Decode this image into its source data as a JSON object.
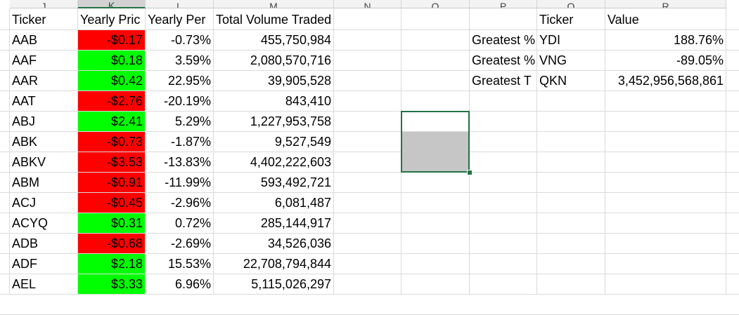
{
  "columns": [
    "J",
    "K",
    "L",
    "M",
    "N",
    "O",
    "P",
    "Q",
    "R"
  ],
  "headers": {
    "ticker": "Ticker",
    "yearly_change": "Yearly Pric",
    "percent_change": "Yearly Per",
    "total_volume": "Total Volume Traded",
    "summary_ticker": "Ticker",
    "summary_value": "Value"
  },
  "rows": [
    {
      "ticker": "AAB",
      "yearly_change": "-$0.17",
      "percent_change": "-0.73%",
      "total_volume": "455,750,984",
      "fill": "red"
    },
    {
      "ticker": "AAF",
      "yearly_change": "$0.18",
      "percent_change": "3.59%",
      "total_volume": "2,080,570,716",
      "fill": "green"
    },
    {
      "ticker": "AAR",
      "yearly_change": "$0.42",
      "percent_change": "22.95%",
      "total_volume": "39,905,528",
      "fill": "green"
    },
    {
      "ticker": "AAT",
      "yearly_change": "-$2.76",
      "percent_change": "-20.19%",
      "total_volume": "843,410",
      "fill": "red"
    },
    {
      "ticker": "ABJ",
      "yearly_change": "$2.41",
      "percent_change": "5.29%",
      "total_volume": "1,227,953,758",
      "fill": "green"
    },
    {
      "ticker": "ABK",
      "yearly_change": "-$0.73",
      "percent_change": "-1.87%",
      "total_volume": "9,527,549",
      "fill": "red"
    },
    {
      "ticker": "ABKV",
      "yearly_change": "-$3.53",
      "percent_change": "-13.83%",
      "total_volume": "4,402,222,603",
      "fill": "red"
    },
    {
      "ticker": "ABM",
      "yearly_change": "-$0.91",
      "percent_change": "-11.99%",
      "total_volume": "593,492,721",
      "fill": "red"
    },
    {
      "ticker": "ACJ",
      "yearly_change": "-$0.45",
      "percent_change": "-2.96%",
      "total_volume": "6,081,487",
      "fill": "red"
    },
    {
      "ticker": "ACYQ",
      "yearly_change": "$0.31",
      "percent_change": "0.72%",
      "total_volume": "285,144,917",
      "fill": "green"
    },
    {
      "ticker": "ADB",
      "yearly_change": "-$0.68",
      "percent_change": "-2.69%",
      "total_volume": "34,526,036",
      "fill": "red"
    },
    {
      "ticker": "ADF",
      "yearly_change": "$2.18",
      "percent_change": "15.53%",
      "total_volume": "22,708,794,844",
      "fill": "green"
    },
    {
      "ticker": "AEL",
      "yearly_change": "$3.33",
      "percent_change": "6.96%",
      "total_volume": "5,115,026,297",
      "fill": "green"
    }
  ],
  "summary": [
    {
      "label": "Greatest %",
      "ticker": "YDI",
      "value": "188.76%"
    },
    {
      "label": "Greatest %",
      "ticker": "VNG",
      "value": "-89.05%"
    },
    {
      "label": "Greatest T",
      "ticker": "QKN",
      "value": "3,452,956,568,861"
    }
  ],
  "colors": {
    "red": "#ff0000",
    "green": "#00ff00",
    "selection": "#217346"
  }
}
